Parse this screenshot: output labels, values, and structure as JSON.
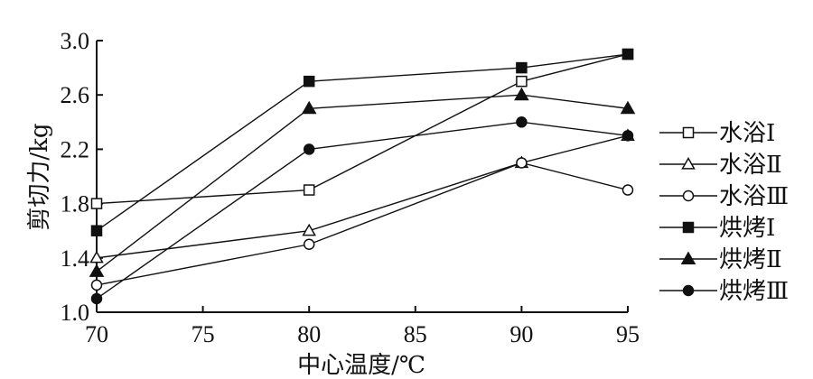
{
  "chart_data": {
    "type": "line",
    "xlabel": "中心温度/℃",
    "ylabel": "剪切力/kg",
    "x_ticks": [
      70,
      75,
      80,
      85,
      90,
      95
    ],
    "y_ticks": [
      "1.0",
      "1.4",
      "1.8",
      "2.2",
      "2.6",
      "3.0"
    ],
    "xlim": [
      70,
      95
    ],
    "ylim": [
      1.0,
      3.0
    ],
    "grid": false,
    "legend_position": "right",
    "x": [
      70,
      80,
      90,
      95
    ],
    "series": [
      {
        "name": "水浴Ⅰ",
        "marker": "square-open",
        "values": [
          1.8,
          1.9,
          2.7,
          2.9
        ]
      },
      {
        "name": "水浴Ⅱ",
        "marker": "triangle-open",
        "values": [
          1.4,
          1.6,
          2.1,
          2.3
        ]
      },
      {
        "name": "水浴Ⅲ",
        "marker": "circle-open",
        "values": [
          1.2,
          1.5,
          2.1,
          1.9
        ]
      },
      {
        "name": "烘烤Ⅰ",
        "marker": "square-filled",
        "values": [
          1.6,
          2.7,
          2.8,
          2.9
        ]
      },
      {
        "name": "烘烤Ⅱ",
        "marker": "triangle-filled",
        "values": [
          1.3,
          2.5,
          2.6,
          2.5
        ]
      },
      {
        "name": "烘烤Ⅲ",
        "marker": "circle-filled",
        "values": [
          1.1,
          2.2,
          2.4,
          2.3
        ]
      }
    ],
    "colors": {
      "line": "#111111",
      "axis": "#111111",
      "fill": "#111111",
      "hollow": "#ffffff"
    }
  }
}
